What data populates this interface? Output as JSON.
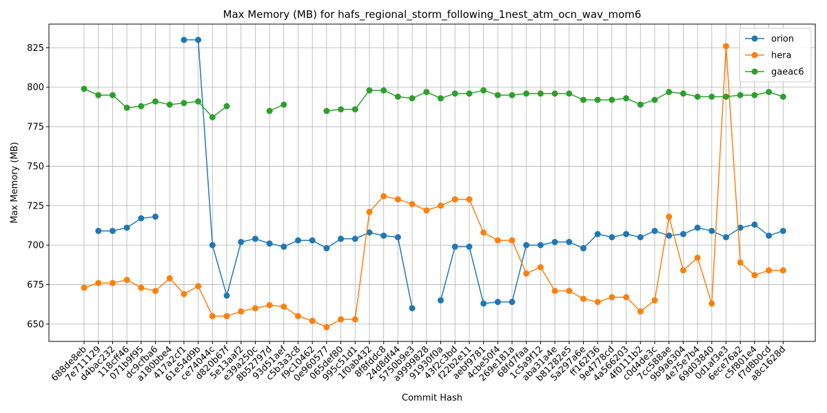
{
  "chart_data": {
    "type": "line",
    "title": "Max Memory (MB) for hafs_regional_storm_following_1nest_atm_ocn_wav_mom6",
    "xlabel": "Commit Hash",
    "ylabel": "Max Memory (MB)",
    "ylim": [
      639,
      840
    ],
    "yticks": [
      650,
      675,
      700,
      725,
      750,
      775,
      800,
      825
    ],
    "grid": true,
    "legend_position": "top-right",
    "categories": [
      "688de8eb",
      "7e711129",
      "d4bac232",
      "118cff46",
      "071b9f95",
      "dc9cfba6",
      "a180bbe4",
      "417a2cf1",
      "61e54d9b",
      "ce74044c",
      "d820b67f",
      "5e13aaf2",
      "e39a250c",
      "8b52797d",
      "93d51aef",
      "c5b3a3c8",
      "f9c10462",
      "0e960577",
      "065def80",
      "995c51d1",
      "1f0ab432",
      "8f8fddc8",
      "24d8df44",
      "5750b9e3",
      "a9999828",
      "91930f0a",
      "43f2c3bd",
      "f22b2e11",
      "aebf9781",
      "4cbe50f4",
      "269e181a",
      "68fd7faa",
      "1c5a9f12",
      "aba31a4e",
      "b81282e5",
      "5a297a6e",
      "ff162f36",
      "9e4778cd",
      "4a566203",
      "4f0111b2",
      "c0d4de3c",
      "7cc588ae",
      "9b9a6304",
      "4e75e7b4",
      "69d03840",
      "0d1af3e3",
      "6ece76a2",
      "c5f801e4",
      "f7d8b0cd",
      "a8c1628d"
    ],
    "series": [
      {
        "name": "orion",
        "color": "#1f77b4",
        "values": [
          null,
          709,
          709,
          711,
          717,
          718,
          null,
          830,
          830,
          700,
          668,
          702,
          704,
          701,
          699,
          703,
          703,
          698,
          704,
          704,
          708,
          706,
          705,
          660,
          null,
          665,
          699,
          699,
          663,
          664,
          664,
          700,
          700,
          702,
          702,
          698,
          707,
          705,
          707,
          705,
          709,
          706,
          707,
          711,
          709,
          705,
          711,
          713,
          706,
          709
        ]
      },
      {
        "name": "hera",
        "color": "#ff7f0e",
        "values": [
          673,
          676,
          676,
          678,
          673,
          671,
          679,
          669,
          674,
          655,
          655,
          658,
          660,
          662,
          661,
          655,
          652,
          648,
          653,
          653,
          721,
          731,
          729,
          726,
          722,
          725,
          729,
          729,
          708,
          703,
          703,
          682,
          686,
          671,
          671,
          666,
          664,
          667,
          667,
          658,
          665,
          718,
          684,
          692,
          663,
          826,
          689,
          681,
          684,
          684
        ]
      },
      {
        "name": "gaeac6",
        "color": "#2ca02c",
        "values": [
          799,
          795,
          795,
          787,
          788,
          791,
          789,
          790,
          791,
          781,
          788,
          null,
          null,
          785,
          789,
          null,
          null,
          785,
          786,
          786,
          798,
          798,
          794,
          793,
          797,
          793,
          796,
          796,
          798,
          795,
          795,
          796,
          796,
          796,
          796,
          792,
          792,
          792,
          793,
          789,
          792,
          797,
          796,
          794,
          794,
          794,
          795,
          795,
          797,
          794
        ]
      }
    ]
  }
}
